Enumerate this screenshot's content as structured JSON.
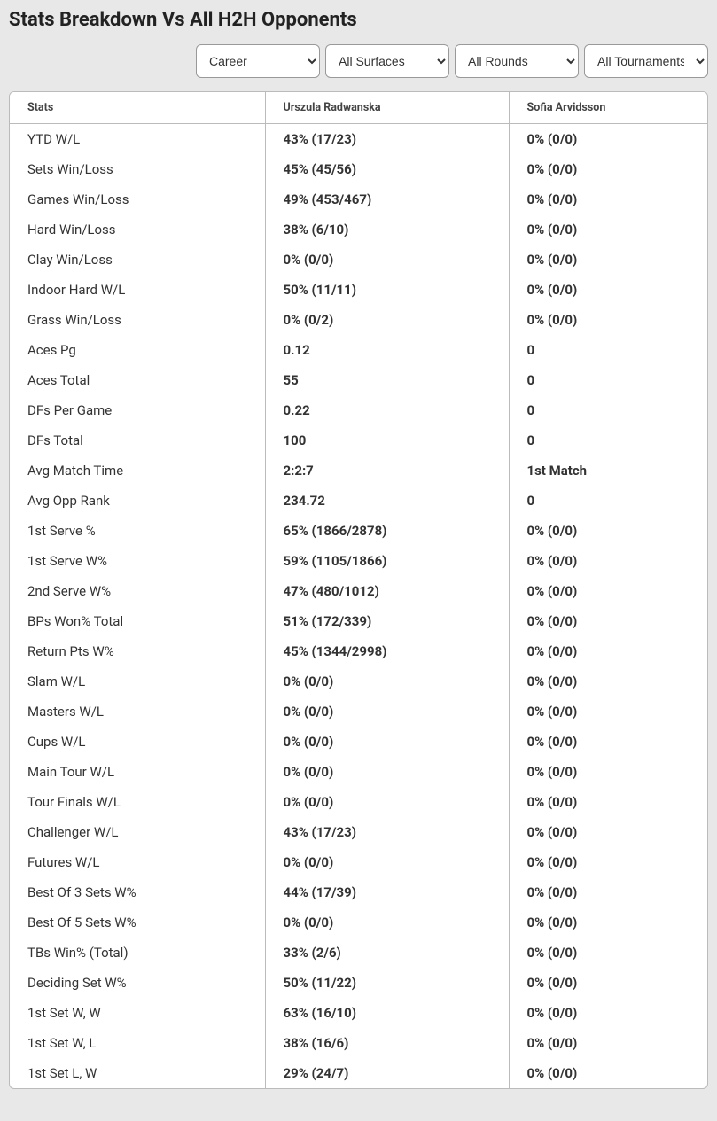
{
  "title": "Stats Breakdown Vs All H2H Opponents",
  "filters": {
    "career": {
      "selected": "Career",
      "options": [
        "Career"
      ]
    },
    "surfaces": {
      "selected": "All Surfaces",
      "options": [
        "All Surfaces"
      ]
    },
    "rounds": {
      "selected": "All Rounds",
      "options": [
        "All Rounds"
      ]
    },
    "tournaments": {
      "selected": "All Tournaments",
      "options": [
        "All Tournaments"
      ]
    }
  },
  "table": {
    "columns": [
      "Stats",
      "Urszula Radwanska",
      "Sofia Arvidsson"
    ],
    "rows": [
      {
        "label": "YTD W/L",
        "p1": "43% (17/23)",
        "p2": "0% (0/0)"
      },
      {
        "label": "Sets Win/Loss",
        "p1": "45% (45/56)",
        "p2": "0% (0/0)"
      },
      {
        "label": "Games Win/Loss",
        "p1": "49% (453/467)",
        "p2": "0% (0/0)"
      },
      {
        "label": "Hard Win/Loss",
        "p1": "38% (6/10)",
        "p2": "0% (0/0)"
      },
      {
        "label": "Clay Win/Loss",
        "p1": "0% (0/0)",
        "p2": "0% (0/0)"
      },
      {
        "label": "Indoor Hard W/L",
        "p1": "50% (11/11)",
        "p2": "0% (0/0)"
      },
      {
        "label": "Grass Win/Loss",
        "p1": "0% (0/2)",
        "p2": "0% (0/0)"
      },
      {
        "label": "Aces Pg",
        "p1": "0.12",
        "p2": "0"
      },
      {
        "label": "Aces Total",
        "p1": "55",
        "p2": "0"
      },
      {
        "label": "DFs Per Game",
        "p1": "0.22",
        "p2": "0"
      },
      {
        "label": "DFs Total",
        "p1": "100",
        "p2": "0"
      },
      {
        "label": "Avg Match Time",
        "p1": "2:2:7",
        "p2": "1st Match"
      },
      {
        "label": "Avg Opp Rank",
        "p1": "234.72",
        "p2": "0"
      },
      {
        "label": "1st Serve %",
        "p1": "65% (1866/2878)",
        "p2": "0% (0/0)"
      },
      {
        "label": "1st Serve W%",
        "p1": "59% (1105/1866)",
        "p2": "0% (0/0)"
      },
      {
        "label": "2nd Serve W%",
        "p1": "47% (480/1012)",
        "p2": "0% (0/0)"
      },
      {
        "label": "BPs Won% Total",
        "p1": "51% (172/339)",
        "p2": "0% (0/0)"
      },
      {
        "label": "Return Pts W%",
        "p1": "45% (1344/2998)",
        "p2": "0% (0/0)"
      },
      {
        "label": "Slam W/L",
        "p1": "0% (0/0)",
        "p2": "0% (0/0)"
      },
      {
        "label": "Masters W/L",
        "p1": "0% (0/0)",
        "p2": "0% (0/0)"
      },
      {
        "label": "Cups W/L",
        "p1": "0% (0/0)",
        "p2": "0% (0/0)"
      },
      {
        "label": "Main Tour W/L",
        "p1": "0% (0/0)",
        "p2": "0% (0/0)"
      },
      {
        "label": "Tour Finals W/L",
        "p1": "0% (0/0)",
        "p2": "0% (0/0)"
      },
      {
        "label": "Challenger W/L",
        "p1": "43% (17/23)",
        "p2": "0% (0/0)"
      },
      {
        "label": "Futures W/L",
        "p1": "0% (0/0)",
        "p2": "0% (0/0)"
      },
      {
        "label": "Best Of 3 Sets W%",
        "p1": "44% (17/39)",
        "p2": "0% (0/0)"
      },
      {
        "label": "Best Of 5 Sets W%",
        "p1": "0% (0/0)",
        "p2": "0% (0/0)"
      },
      {
        "label": "TBs Win% (Total)",
        "p1": "33% (2/6)",
        "p2": "0% (0/0)"
      },
      {
        "label": "Deciding Set W%",
        "p1": "50% (11/22)",
        "p2": "0% (0/0)"
      },
      {
        "label": "1st Set W, W",
        "p1": "63% (16/10)",
        "p2": "0% (0/0)"
      },
      {
        "label": "1st Set W, L",
        "p1": "38% (16/6)",
        "p2": "0% (0/0)"
      },
      {
        "label": "1st Set L, W",
        "p1": "29% (24/7)",
        "p2": "0% (0/0)"
      }
    ]
  }
}
